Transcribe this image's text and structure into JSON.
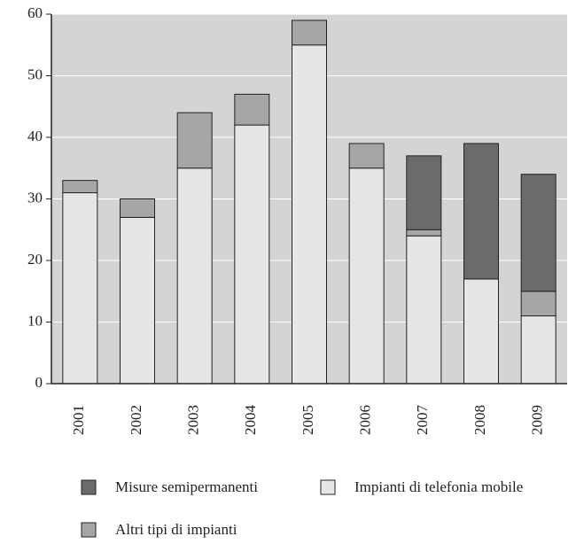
{
  "chart_data": {
    "type": "bar",
    "stacked": true,
    "categories": [
      "2001",
      "2002",
      "2003",
      "2004",
      "2005",
      "2006",
      "2007",
      "2008",
      "2009"
    ],
    "series": [
      {
        "name": "Misure semipermanenti",
        "color": "#6b6b6d",
        "values": [
          0,
          0,
          0,
          0,
          0,
          0,
          12,
          22,
          19
        ]
      },
      {
        "name": "Impianti di telefonia mobile",
        "color": "#e6e6e8",
        "values": [
          31,
          27,
          35,
          42,
          55,
          35,
          24,
          17,
          11
        ]
      },
      {
        "name": "Altri tipi di impianti",
        "color": "#a6a6a8",
        "values": [
          2,
          3,
          9,
          5,
          4,
          4,
          1,
          0,
          4
        ]
      }
    ],
    "ylim": [
      0,
      60
    ],
    "yticks": [
      0,
      10,
      20,
      30,
      40,
      50,
      60
    ],
    "grid": true,
    "plot_background": "#d4d4d6"
  }
}
